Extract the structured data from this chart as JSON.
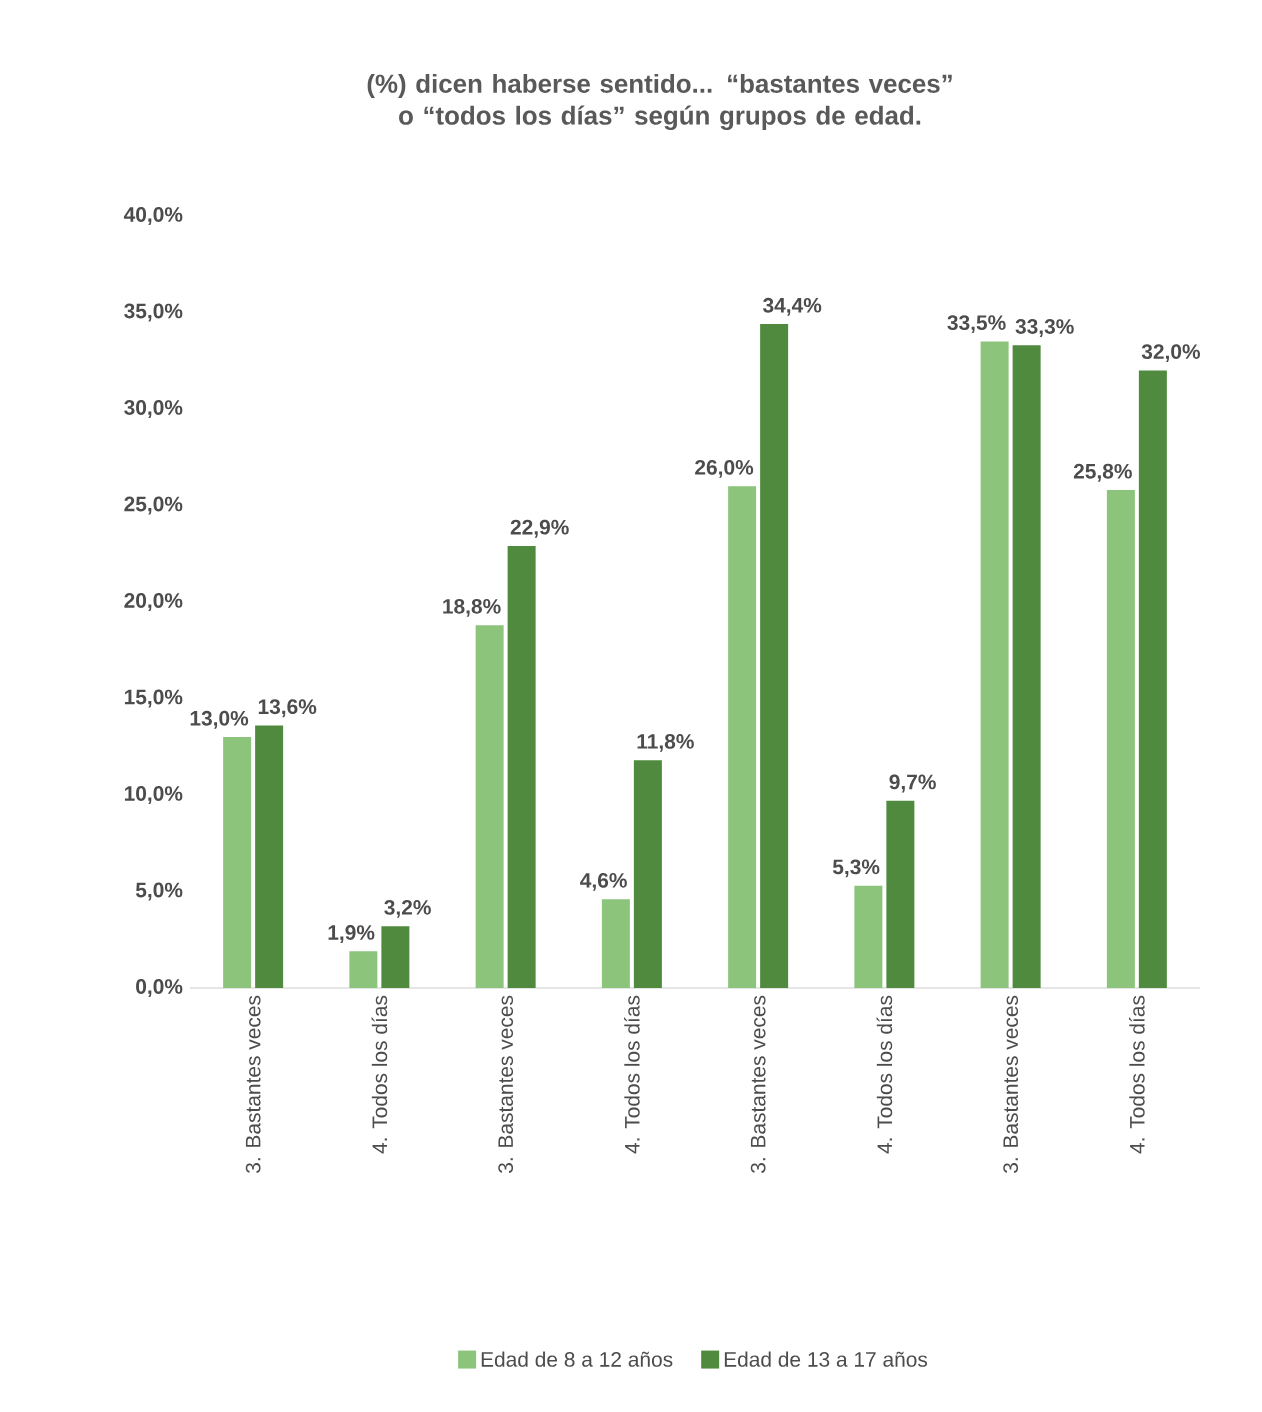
{
  "chart_data": {
    "type": "bar",
    "title": "(%) dicen haberse sentido... “bastantes veces” o “todos los días” según grupos de edad.",
    "categories": [
      "3. Bastantes veces",
      "4. Todos los días",
      "3. Bastantes veces",
      "4. Todos los días",
      "3. Bastantes veces",
      "4. Todos los días",
      "3. Bastantes veces",
      "4. Todos los días"
    ],
    "series": [
      {
        "name": "Edad  de 8 a 12 años",
        "color": "#8cc47c",
        "values": [
          13.0,
          1.9,
          18.8,
          4.6,
          26.0,
          5.3,
          33.5,
          25.8
        ],
        "value_labels": [
          "13,0%",
          "1,9%",
          "18,8%",
          "4,6%",
          "26,0%",
          "5,3%",
          "33,5%",
          "25,8%"
        ]
      },
      {
        "name": "Edad  de 13 a 17 años",
        "color": "#4f8a3e",
        "values": [
          13.6,
          3.2,
          22.9,
          11.8,
          34.4,
          9.7,
          33.3,
          32.0
        ],
        "value_labels": [
          "13,6%",
          "3,2%",
          "22,9%",
          "11,8%",
          "34,4%",
          "9,7%",
          "33,3%",
          "32,0%"
        ]
      }
    ],
    "ylim": [
      0,
      40
    ],
    "yticks": [
      {
        "value": 0,
        "label": "0,0%"
      },
      {
        "value": 5,
        "label": "5,0%"
      },
      {
        "value": 10,
        "label": "10,0%"
      },
      {
        "value": 15,
        "label": "15,0%"
      },
      {
        "value": 20,
        "label": "20,0%"
      },
      {
        "value": 25,
        "label": "25,0%"
      },
      {
        "value": 30,
        "label": "30,0%"
      },
      {
        "value": 35,
        "label": "35,0%"
      },
      {
        "value": 40,
        "label": "40,0%"
      }
    ],
    "legend": "bottom"
  }
}
